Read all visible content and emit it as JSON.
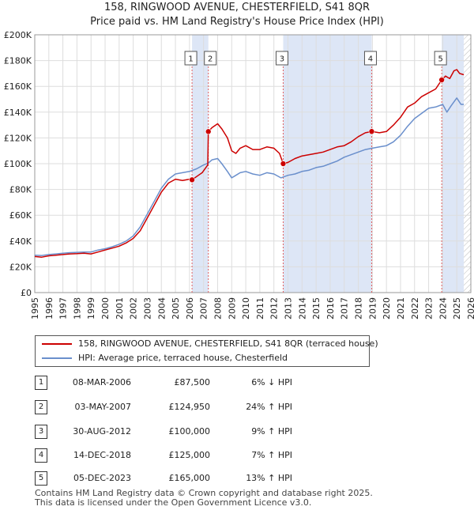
{
  "title_line1": "158, RINGWOOD AVENUE, CHESTERFIELD, S41 8QR",
  "title_line2": "Price paid vs. HM Land Registry's House Price Index (HPI)",
  "chart_data": {
    "type": "line",
    "ylim": [
      0,
      200000
    ],
    "xlim": [
      1995,
      2026
    ],
    "y_ticks": [
      0,
      20000,
      40000,
      60000,
      80000,
      100000,
      120000,
      140000,
      160000,
      180000,
      200000
    ],
    "y_tick_labels": [
      "£0",
      "£20K",
      "£40K",
      "£60K",
      "£80K",
      "£100K",
      "£120K",
      "£140K",
      "£160K",
      "£180K",
      "£200K"
    ],
    "x_ticks": [
      1995,
      1996,
      1997,
      1998,
      1999,
      2000,
      2001,
      2002,
      2003,
      2004,
      2005,
      2006,
      2007,
      2008,
      2009,
      2010,
      2011,
      2012,
      2013,
      2014,
      2015,
      2016,
      2017,
      2018,
      2019,
      2020,
      2021,
      2022,
      2023,
      2024,
      2025,
      2026
    ],
    "x_tick_labels": [
      "1995",
      "1996",
      "1997",
      "1998",
      "1999",
      "2000",
      "2001",
      "2002",
      "2003",
      "2004",
      "2005",
      "2006",
      "2007",
      "2008",
      "2009",
      "2010",
      "2011",
      "2012",
      "2013",
      "2014",
      "2015",
      "2016",
      "2017",
      "2018",
      "2019",
      "2020",
      "2021",
      "2022",
      "2023",
      "2024",
      "2025",
      "2026"
    ],
    "shaded_ranges": [
      [
        2006.18,
        2007.34
      ],
      [
        2012.66,
        2018.95
      ],
      [
        2023.93,
        2025.5
      ]
    ],
    "hatched_range": [
      2025.5,
      2026
    ],
    "series": [
      {
        "name": "158, RINGWOOD AVENUE, CHESTERFIELD, S41 8QR (terraced house)",
        "color": "#cc0000",
        "x": [
          1995.0,
          1995.5,
          1996.0,
          1996.5,
          1997.0,
          1997.5,
          1998.0,
          1998.5,
          1999.0,
          1999.5,
          2000.0,
          2000.5,
          2001.0,
          2001.5,
          2002.0,
          2002.5,
          2003.0,
          2003.5,
          2004.0,
          2004.5,
          2005.0,
          2005.5,
          2006.0,
          2006.18,
          2006.5,
          2006.9,
          2007.3,
          2007.34,
          2007.6,
          2008.0,
          2008.3,
          2008.7,
          2009.0,
          2009.3,
          2009.6,
          2010.0,
          2010.5,
          2011.0,
          2011.5,
          2012.0,
          2012.4,
          2012.66,
          2013.0,
          2013.5,
          2014.0,
          2014.5,
          2015.0,
          2015.5,
          2016.0,
          2016.5,
          2017.0,
          2017.5,
          2018.0,
          2018.5,
          2018.95,
          2019.5,
          2020.0,
          2020.5,
          2021.0,
          2021.5,
          2022.0,
          2022.5,
          2023.0,
          2023.5,
          2023.93,
          2024.2,
          2024.5,
          2024.8,
          2025.0,
          2025.2,
          2025.5
        ],
        "y": [
          28000,
          27500,
          28500,
          29000,
          29500,
          30000,
          30200,
          30500,
          30000,
          31500,
          33000,
          34500,
          36000,
          38500,
          42000,
          48000,
          58000,
          68000,
          78000,
          85000,
          88000,
          87000,
          88000,
          87500,
          90000,
          93000,
          99000,
          124950,
          128000,
          131000,
          127000,
          120000,
          110000,
          108000,
          112000,
          114000,
          111000,
          111000,
          113000,
          112000,
          108000,
          100000,
          101000,
          104000,
          106000,
          107000,
          108000,
          109000,
          111000,
          113000,
          114000,
          117000,
          121000,
          124000,
          125000,
          124000,
          125000,
          130000,
          136000,
          144000,
          147000,
          152000,
          155000,
          158000,
          165000,
          168000,
          166000,
          172000,
          173000,
          170000,
          169000
        ]
      },
      {
        "name": "HPI: Average price, terraced house, Chesterfield",
        "color": "#6a8fcc",
        "x": [
          1995.0,
          1995.5,
          1996.0,
          1996.5,
          1997.0,
          1997.5,
          1998.0,
          1998.5,
          1999.0,
          1999.5,
          2000.0,
          2000.5,
          2001.0,
          2001.5,
          2002.0,
          2002.5,
          2003.0,
          2003.5,
          2004.0,
          2004.5,
          2005.0,
          2005.5,
          2006.0,
          2006.5,
          2007.0,
          2007.34,
          2007.6,
          2008.0,
          2008.3,
          2008.7,
          2009.0,
          2009.3,
          2009.6,
          2010.0,
          2010.5,
          2011.0,
          2011.5,
          2012.0,
          2012.5,
          2013.0,
          2013.5,
          2014.0,
          2014.5,
          2015.0,
          2015.5,
          2016.0,
          2016.5,
          2017.0,
          2017.5,
          2018.0,
          2018.5,
          2019.0,
          2019.5,
          2020.0,
          2020.5,
          2021.0,
          2021.5,
          2022.0,
          2022.5,
          2023.0,
          2023.5,
          2024.0,
          2024.3,
          2024.6,
          2025.0,
          2025.3,
          2025.5
        ],
        "y": [
          29000,
          28800,
          29500,
          30000,
          30500,
          31000,
          31200,
          31500,
          31500,
          33000,
          34000,
          35500,
          37500,
          40000,
          44000,
          51000,
          61000,
          71000,
          81000,
          88000,
          92000,
          93000,
          94000,
          96000,
          99000,
          100500,
          103000,
          104000,
          100000,
          94000,
          89000,
          91000,
          93000,
          94000,
          92000,
          91000,
          93000,
          92000,
          89000,
          91000,
          92000,
          94000,
          95000,
          97000,
          98000,
          100000,
          102000,
          105000,
          107000,
          109000,
          111000,
          112000,
          113000,
          114000,
          117000,
          122000,
          129000,
          135000,
          139000,
          143000,
          144000,
          146000,
          140000,
          145000,
          151000,
          146000,
          146000
        ]
      }
    ],
    "sales": [
      {
        "n": "1",
        "x": 2006.18,
        "y": 87500
      },
      {
        "n": "2",
        "x": 2007.34,
        "y": 124950
      },
      {
        "n": "3",
        "x": 2012.66,
        "y": 100000
      },
      {
        "n": "4",
        "x": 2018.95,
        "y": 125000
      },
      {
        "n": "5",
        "x": 2023.93,
        "y": 165000
      }
    ]
  },
  "legend": {
    "red_label": "158, RINGWOOD AVENUE, CHESTERFIELD, S41 8QR (terraced house)",
    "blue_label": "HPI: Average price, terraced house, Chesterfield",
    "red_color": "#cc0000",
    "blue_color": "#6a8fcc"
  },
  "sales_table": [
    {
      "n": "1",
      "date": "08-MAR-2006",
      "price": "£87,500",
      "hpi": "6% ↓ HPI"
    },
    {
      "n": "2",
      "date": "03-MAY-2007",
      "price": "£124,950",
      "hpi": "24% ↑ HPI"
    },
    {
      "n": "3",
      "date": "30-AUG-2012",
      "price": "£100,000",
      "hpi": "9% ↑ HPI"
    },
    {
      "n": "4",
      "date": "14-DEC-2018",
      "price": "£125,000",
      "hpi": "7% ↑ HPI"
    },
    {
      "n": "5",
      "date": "05-DEC-2023",
      "price": "£165,000",
      "hpi": "13% ↑ HPI"
    }
  ],
  "footer_line1": "Contains HM Land Registry data © Crown copyright and database right 2025.",
  "footer_line2": "This data is licensed under the Open Government Licence v3.0."
}
